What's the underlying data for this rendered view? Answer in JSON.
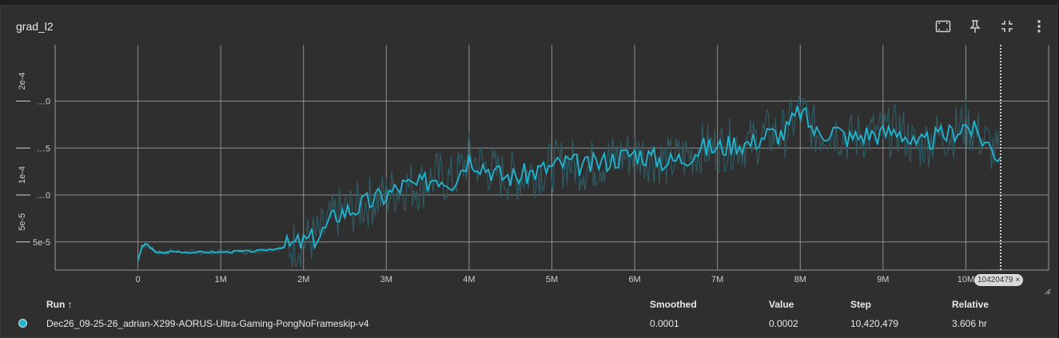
{
  "panel": {
    "title": "grad_l2"
  },
  "toolbar": {
    "icons": [
      "fit-domain-icon",
      "pin-icon",
      "collapse-icon",
      "more-vert-icon"
    ]
  },
  "colors": {
    "series": "#1fb6d2",
    "raw": "#2e5b63",
    "grid": "#9a9a9a",
    "background": "#2f2f2f"
  },
  "chart_data": {
    "type": "line",
    "title": "grad_l2",
    "xlabel": "",
    "ylabel": "",
    "x_ticks": [
      "0",
      "1M",
      "2M",
      "3M",
      "4M",
      "5M",
      "6M",
      "7M",
      "8M",
      "9M",
      "10M"
    ],
    "y_ticks": [
      {
        "value": 5e-05,
        "label": "5e-5",
        "side": "5e-5"
      },
      {
        "value": 0.0001,
        "label": "1e-4",
        "side": "…0"
      },
      {
        "value": 0.00015,
        "label": "",
        "side": "…5"
      },
      {
        "value": 0.0002,
        "label": "2e-4",
        "side": "…0"
      }
    ],
    "xlim": [
      -1000000,
      11000000
    ],
    "ylim": [
      2e-05,
      0.00026
    ],
    "grid": true,
    "step_marker": {
      "x": 10420479,
      "label": "10420479"
    },
    "series": [
      {
        "name": "Dec26_09-25-26_adrian-X299-AORUS-Ultra-Gaming-PongNoFrameskip-v4",
        "x": [
          0,
          50000,
          100000,
          200000,
          300000,
          400000,
          600000,
          800000,
          1000000,
          1200000,
          1400000,
          1600000,
          1800000,
          2000000,
          2200000,
          2400000,
          2600000,
          2800000,
          3000000,
          3200000,
          3400000,
          3600000,
          3800000,
          4000000,
          4200000,
          4400000,
          4600000,
          4800000,
          5000000,
          5200000,
          5400000,
          5600000,
          5800000,
          6000000,
          6200000,
          6400000,
          6600000,
          6800000,
          7000000,
          7200000,
          7400000,
          7600000,
          7800000,
          8000000,
          8200000,
          8400000,
          8600000,
          8800000,
          9000000,
          9200000,
          9400000,
          9600000,
          9800000,
          10000000,
          10200000,
          10420479
        ],
        "values": [
          3e-05,
          4.5e-05,
          4.8e-05,
          4e-05,
          3.8e-05,
          4e-05,
          3.9e-05,
          3.9e-05,
          3.9e-05,
          4e-05,
          4e-05,
          4.2e-05,
          4.5e-05,
          5e-05,
          5.7e-05,
          8e-05,
          8.5e-05,
          9.3e-05,
          0.0001,
          0.00011,
          0.00011,
          0.00012,
          0.000115,
          0.00014,
          0.00013,
          0.00012,
          0.00012,
          0.000125,
          0.00013,
          0.000135,
          0.00013,
          0.000135,
          0.00014,
          0.000145,
          0.00014,
          0.000135,
          0.00014,
          0.00015,
          0.00015,
          0.000155,
          0.000155,
          0.000165,
          0.000165,
          0.00019,
          0.000165,
          0.00017,
          0.00016,
          0.000165,
          0.000165,
          0.00017,
          0.00015,
          0.00016,
          0.000165,
          0.000175,
          0.00016,
          0.00014
        ]
      }
    ]
  },
  "table": {
    "headers": {
      "run": "Run ↑",
      "smoothed": "Smoothed",
      "value": "Value",
      "step": "Step",
      "relative": "Relative"
    },
    "rows": [
      {
        "run": "Dec26_09-25-26_adrian-X299-AORUS-Ultra-Gaming-PongNoFrameskip-v4",
        "smoothed": "0.0001",
        "value": "0.0002",
        "step": "10,420,479",
        "relative": "3.606 hr"
      }
    ]
  },
  "step_chip": {
    "label": "10420479",
    "close": "×"
  }
}
